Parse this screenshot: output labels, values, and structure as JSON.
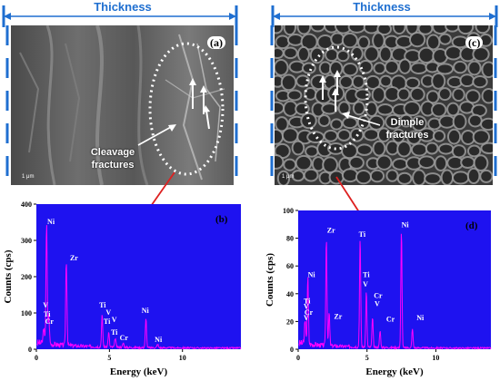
{
  "thickness_label": "Thickness",
  "panel_a": {
    "label": "(a)",
    "annotation_line1": "Cleavage",
    "annotation_line2": "fractures",
    "scale": "1 μm"
  },
  "panel_c": {
    "label": "(c)",
    "annotation_line1": "Dimple",
    "annotation_line2": "fractures",
    "scale": "1 μm"
  },
  "colors": {
    "thickness": "#1f6fd0",
    "arrow": "#dd2020",
    "plot_bg": "#1e12f0",
    "spectrum": "#ff00ff"
  },
  "chart_data": [
    {
      "type": "line",
      "panel_label": "(b)",
      "xlabel": "Energy (keV)",
      "ylabel": "Counts (cps)",
      "xlim": [
        0,
        14
      ],
      "ylim": [
        0,
        400
      ],
      "yticks": [
        0,
        100,
        200,
        300,
        400
      ],
      "xticks": [
        0,
        5,
        10
      ],
      "peaks": [
        {
          "x": 0.7,
          "y": 330
        },
        {
          "x": 0.85,
          "y": 80
        },
        {
          "x": 0.5,
          "y": 45
        },
        {
          "x": 2.05,
          "y": 235
        },
        {
          "x": 4.5,
          "y": 88
        },
        {
          "x": 4.95,
          "y": 40
        },
        {
          "x": 5.4,
          "y": 25
        },
        {
          "x": 5.95,
          "y": 12
        },
        {
          "x": 7.5,
          "y": 80
        },
        {
          "x": 8.3,
          "y": 10
        }
      ],
      "element_labels": [
        {
          "text": "Ni",
          "x": 0.75,
          "y": 345
        },
        {
          "text": "V",
          "x": 0.45,
          "y": 115
        },
        {
          "text": "Ti",
          "x": 0.5,
          "y": 90
        },
        {
          "text": "Cr",
          "x": 0.6,
          "y": 70
        },
        {
          "text": "Zr",
          "x": 2.3,
          "y": 245
        },
        {
          "text": "Ti",
          "x": 4.3,
          "y": 115
        },
        {
          "text": "V",
          "x": 4.75,
          "y": 95
        },
        {
          "text": "Ti",
          "x": 4.6,
          "y": 70
        },
        {
          "text": "V",
          "x": 5.15,
          "y": 75
        },
        {
          "text": "Ti",
          "x": 5.1,
          "y": 40
        },
        {
          "text": "Cr",
          "x": 5.7,
          "y": 25
        },
        {
          "text": "Ni",
          "x": 7.2,
          "y": 100
        },
        {
          "text": "Ni",
          "x": 8.1,
          "y": 20
        }
      ]
    },
    {
      "type": "line",
      "panel_label": "(d)",
      "xlabel": "Energy (keV)",
      "ylabel": "Counts (cps)",
      "xlim": [
        0,
        14
      ],
      "ylim": [
        0,
        100
      ],
      "yticks": [
        0,
        20,
        40,
        60,
        80,
        100
      ],
      "xticks": [
        0,
        5,
        10
      ],
      "peaks": [
        {
          "x": 0.7,
          "y": 48
        },
        {
          "x": 0.5,
          "y": 18
        },
        {
          "x": 2.05,
          "y": 78
        },
        {
          "x": 2.25,
          "y": 24
        },
        {
          "x": 4.5,
          "y": 78
        },
        {
          "x": 4.95,
          "y": 40
        },
        {
          "x": 5.4,
          "y": 22
        },
        {
          "x": 5.95,
          "y": 12
        },
        {
          "x": 7.5,
          "y": 84
        },
        {
          "x": 8.3,
          "y": 14
        }
      ],
      "element_labels": [
        {
          "text": "Ni",
          "x": 0.7,
          "y": 52
        },
        {
          "text": "Ti",
          "x": 0.4,
          "y": 33
        },
        {
          "text": "V",
          "x": 0.4,
          "y": 29
        },
        {
          "text": "Cr",
          "x": 0.45,
          "y": 25
        },
        {
          "text": "V",
          "x": 0.4,
          "y": 21
        },
        {
          "text": "Zr",
          "x": 2.1,
          "y": 84
        },
        {
          "text": "Zr",
          "x": 2.6,
          "y": 22
        },
        {
          "text": "Ti",
          "x": 4.4,
          "y": 81
        },
        {
          "text": "Ti",
          "x": 4.7,
          "y": 52
        },
        {
          "text": "V",
          "x": 4.7,
          "y": 45
        },
        {
          "text": "Cr",
          "x": 5.5,
          "y": 37
        },
        {
          "text": "V",
          "x": 5.55,
          "y": 31
        },
        {
          "text": "Cr",
          "x": 6.4,
          "y": 20
        },
        {
          "text": "Ni",
          "x": 7.5,
          "y": 88
        },
        {
          "text": "Ni",
          "x": 8.6,
          "y": 21
        }
      ]
    }
  ]
}
